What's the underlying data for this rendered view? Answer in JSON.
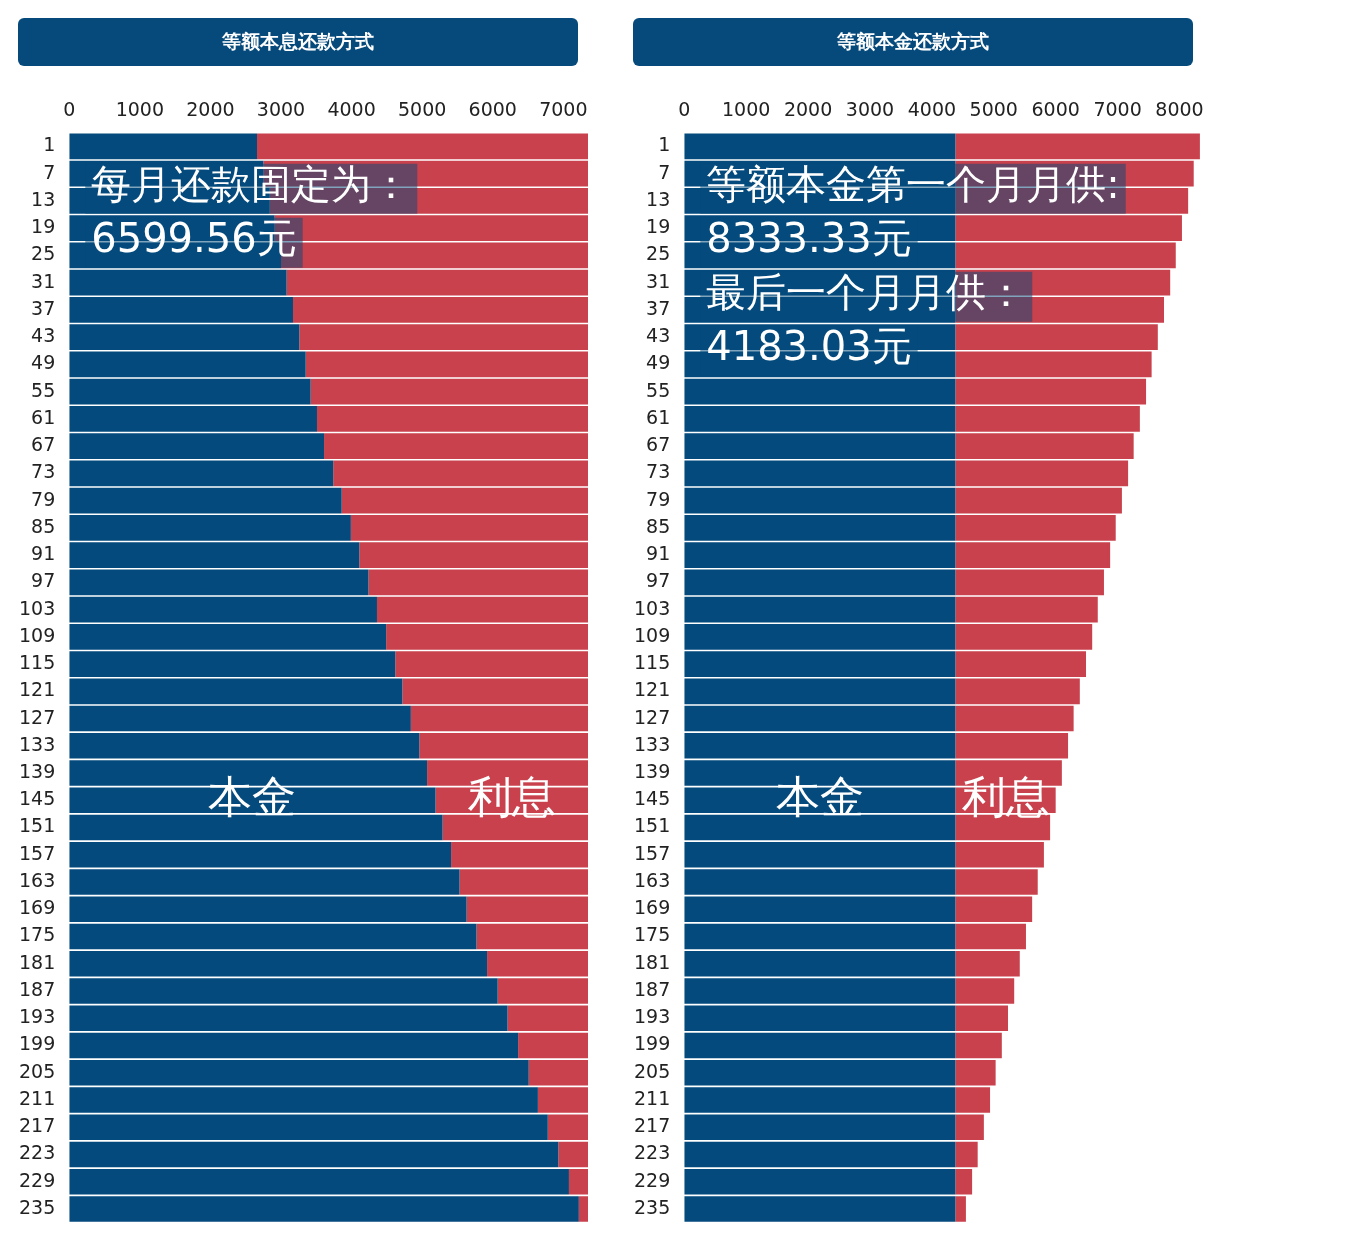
{
  "chart_data": [
    {
      "type": "bar",
      "orientation": "horizontal",
      "stacked": true,
      "title": "等额本息还款方式",
      "categories": [
        "1",
        "7",
        "13",
        "19",
        "25",
        "31",
        "37",
        "43",
        "49",
        "55",
        "61",
        "67",
        "73",
        "79",
        "85",
        "91",
        "97",
        "103",
        "109",
        "115",
        "121",
        "127",
        "133",
        "139",
        "145",
        "151",
        "157",
        "163",
        "169",
        "175",
        "181",
        "187",
        "193",
        "199",
        "205",
        "211",
        "217",
        "223",
        "229",
        "235"
      ],
      "series": [
        {
          "name": "本金",
          "color": "#044a7c",
          "values": [
            2660,
            2750,
            2840,
            2910,
            3000,
            3080,
            3170,
            3260,
            3350,
            3420,
            3510,
            3610,
            3740,
            3860,
            3990,
            4110,
            4240,
            4360,
            4490,
            4620,
            4720,
            4840,
            4960,
            5070,
            5190,
            5290,
            5410,
            5530,
            5630,
            5770,
            5920,
            6070,
            6210,
            6360,
            6510,
            6640,
            6780,
            6930,
            7080,
            7220
          ]
        },
        {
          "name": "利息",
          "color": "#c8414c",
          "values": [
            4690,
            4600,
            4510,
            4440,
            4350,
            4270,
            4180,
            4090,
            4000,
            3930,
            3840,
            3740,
            3610,
            3490,
            3360,
            3240,
            3110,
            2990,
            2860,
            2730,
            2630,
            2510,
            2390,
            2280,
            2160,
            2060,
            1940,
            1820,
            1720,
            1580,
            1430,
            1280,
            1140,
            990,
            840,
            710,
            570,
            420,
            270,
            130
          ]
        }
      ],
      "xlim": [
        0,
        7350
      ],
      "xticks": [
        0,
        1000,
        2000,
        3000,
        4000,
        5000,
        6000,
        7000
      ],
      "annotations": [
        "每月还款固定为：\n6599.56元"
      ]
    },
    {
      "type": "bar",
      "orientation": "horizontal",
      "stacked": true,
      "title": "等额本金还款方式",
      "categories": [
        "1",
        "7",
        "13",
        "19",
        "25",
        "31",
        "37",
        "43",
        "49",
        "55",
        "61",
        "67",
        "73",
        "79",
        "85",
        "91",
        "97",
        "103",
        "109",
        "115",
        "121",
        "127",
        "133",
        "139",
        "145",
        "151",
        "157",
        "163",
        "169",
        "175",
        "181",
        "187",
        "193",
        "199",
        "205",
        "211",
        "217",
        "223",
        "229",
        "235"
      ],
      "series": [
        {
          "name": "本金",
          "color": "#044a7c",
          "values": [
            4380,
            4380,
            4380,
            4380,
            4380,
            4380,
            4380,
            4380,
            4380,
            4380,
            4380,
            4380,
            4380,
            4380,
            4380,
            4380,
            4380,
            4380,
            4380,
            4380,
            4380,
            4380,
            4380,
            4380,
            4380,
            4380,
            4380,
            4380,
            4380,
            4380,
            4380,
            4380,
            4380,
            4380,
            4380,
            4380,
            4380,
            4380,
            4380,
            4380
          ]
        },
        {
          "name": "利息",
          "color": "#c8414c",
          "values": [
            3950,
            3850,
            3760,
            3660,
            3560,
            3470,
            3370,
            3270,
            3170,
            3080,
            2980,
            2880,
            2790,
            2690,
            2590,
            2500,
            2400,
            2300,
            2210,
            2110,
            2010,
            1910,
            1820,
            1720,
            1620,
            1530,
            1430,
            1330,
            1240,
            1140,
            1040,
            950,
            850,
            750,
            650,
            560,
            460,
            360,
            270,
            170
          ]
        }
      ],
      "xlim": [
        0,
        8380
      ],
      "xticks": [
        0,
        1000,
        2000,
        3000,
        4000,
        5000,
        6000,
        7000,
        8000
      ],
      "annotations": [
        "等额本金第一个月月供:\n8333.33元",
        "最后一个月月供：\n4183.03元"
      ]
    }
  ]
}
